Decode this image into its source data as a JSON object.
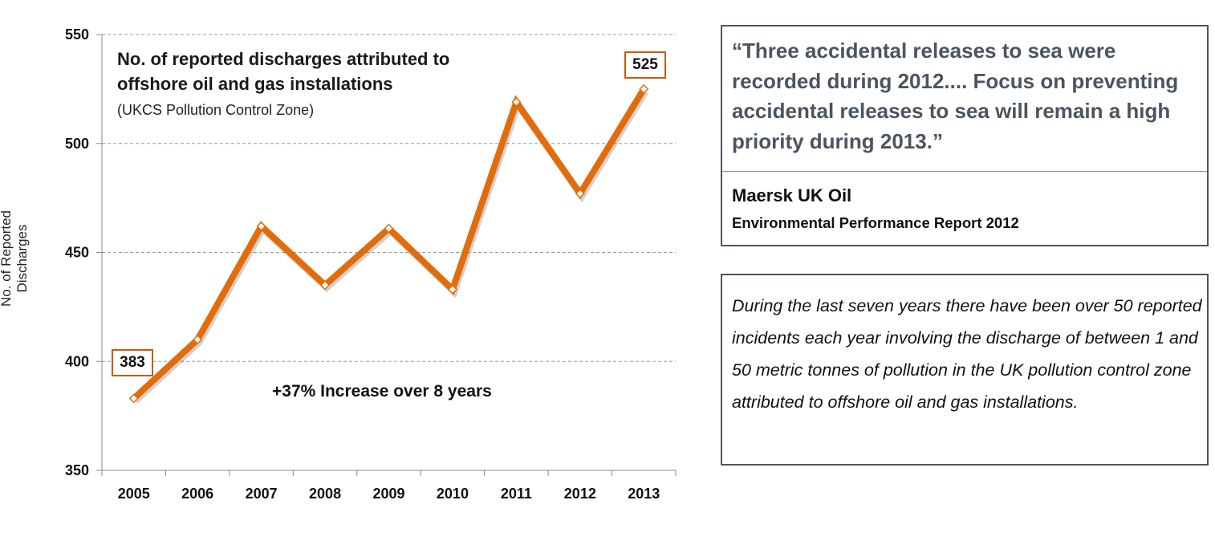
{
  "chart_data": {
    "type": "line",
    "title": "No. of reported discharges attributed to offshore oil and gas installations",
    "subtitle": "(UKCS Pollution Control Zone)",
    "ylabel": "No. of Reported Discharges",
    "xlabel": "",
    "ylim": [
      350,
      550
    ],
    "yticks": [
      350,
      400,
      450,
      500,
      550
    ],
    "categories": [
      "2005",
      "2006",
      "2007",
      "2008",
      "2009",
      "2010",
      "2011",
      "2012",
      "2013"
    ],
    "series": [
      {
        "values": [
          383,
          410,
          462,
          435,
          461,
          433,
          519,
          477,
          525
        ]
      }
    ],
    "callouts": {
      "first": "383",
      "last": "525"
    },
    "annotation": "+37% Increase over 8 years",
    "grid": true,
    "line_color": "#e36c0a",
    "marker_fill": "#ffffff"
  },
  "quote": {
    "text": "“Three accidental releases to sea were recorded during 2012.... Focus on preventing accidental releases to sea will remain a high priority during 2013.”",
    "author": "Maersk UK Oil",
    "source": "Environmental Performance Report 2012"
  },
  "note": {
    "text": "During the last seven years there have been over 50 reported incidents each year involving the discharge of between 1 and 50 metric tonnes of pollution in the UK pollution control zone attributed to offshore oil and gas installations."
  },
  "colors": {
    "line": "#e36c0a",
    "callout_border": "#c55a11",
    "box_border": "#4a5560",
    "quote_text": "#4a5560"
  }
}
